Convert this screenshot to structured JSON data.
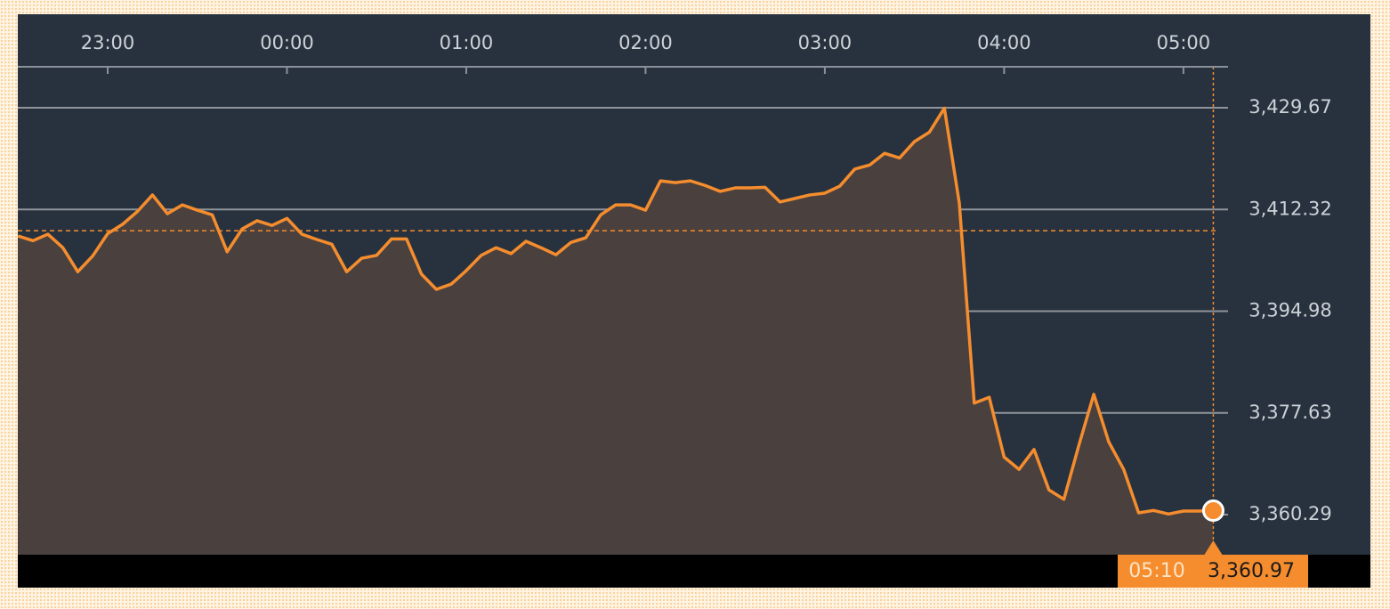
{
  "chart_data": {
    "type": "area",
    "x": [
      "22:30",
      "22:35",
      "22:40",
      "22:45",
      "22:50",
      "22:55",
      "23:00",
      "23:05",
      "23:10",
      "23:15",
      "23:20",
      "23:25",
      "23:30",
      "23:35",
      "23:40",
      "23:45",
      "23:50",
      "23:55",
      "00:00",
      "00:05",
      "00:10",
      "00:15",
      "00:20",
      "00:25",
      "00:30",
      "00:35",
      "00:40",
      "00:45",
      "00:50",
      "00:55",
      "01:00",
      "01:05",
      "01:10",
      "01:15",
      "01:20",
      "01:25",
      "01:30",
      "01:35",
      "01:40",
      "01:45",
      "01:50",
      "01:55",
      "02:00",
      "02:05",
      "02:10",
      "02:15",
      "02:20",
      "02:25",
      "02:30",
      "02:35",
      "02:40",
      "02:45",
      "02:50",
      "02:55",
      "03:00",
      "03:05",
      "03:10",
      "03:15",
      "03:20",
      "03:25",
      "03:30",
      "03:35",
      "03:40",
      "03:45",
      "03:50",
      "03:55",
      "04:00",
      "04:05",
      "04:10",
      "04:15",
      "04:20",
      "04:25",
      "04:30",
      "04:35",
      "04:40",
      "04:45",
      "04:50",
      "04:55",
      "05:00",
      "05:05",
      "05:10"
    ],
    "values": [
      3407.8,
      3407.0,
      3408.1,
      3405.8,
      3401.7,
      3404.4,
      3408.2,
      3409.8,
      3412.0,
      3414.8,
      3411.6,
      3413.1,
      3412.2,
      3411.4,
      3405.1,
      3409.0,
      3410.4,
      3409.6,
      3410.8,
      3408.1,
      3407.2,
      3406.4,
      3401.7,
      3404.0,
      3404.5,
      3407.3,
      3407.3,
      3401.3,
      3398.7,
      3399.6,
      3401.9,
      3404.5,
      3405.8,
      3404.8,
      3406.9,
      3405.8,
      3404.6,
      3406.7,
      3407.5,
      3411.4,
      3413.1,
      3413.1,
      3412.2,
      3417.2,
      3416.9,
      3417.2,
      3416.4,
      3415.4,
      3416.0,
      3416.0,
      3416.1,
      3413.6,
      3414.2,
      3414.8,
      3415.1,
      3416.3,
      3419.2,
      3419.9,
      3421.9,
      3421.1,
      3423.9,
      3425.5,
      3429.6,
      3413.4,
      3379.3,
      3380.3,
      3370.1,
      3368.0,
      3371.4,
      3364.5,
      3362.9,
      3372.1,
      3380.8,
      3372.7,
      3368.0,
      3360.6,
      3361.0,
      3360.4,
      3360.9,
      3360.9,
      3360.97
    ],
    "color": "#f58d2e",
    "reference_value": 3408.7,
    "last_value_label": "3,360.97",
    "ylim": [
      3353.46,
      3436.65
    ],
    "yticks": [
      {
        "value": 3429.67,
        "label": "3,429.67"
      },
      {
        "value": 3412.32,
        "label": "3,412.32"
      },
      {
        "value": 3394.98,
        "label": "3,394.98"
      },
      {
        "value": 3377.63,
        "label": "3,377.63"
      },
      {
        "value": 3360.29,
        "label": "3,360.29"
      }
    ],
    "xticks": [
      "23:00",
      "00:00",
      "01:00",
      "02:00",
      "03:00",
      "04:00",
      "05:00"
    ],
    "grid": true
  }
}
